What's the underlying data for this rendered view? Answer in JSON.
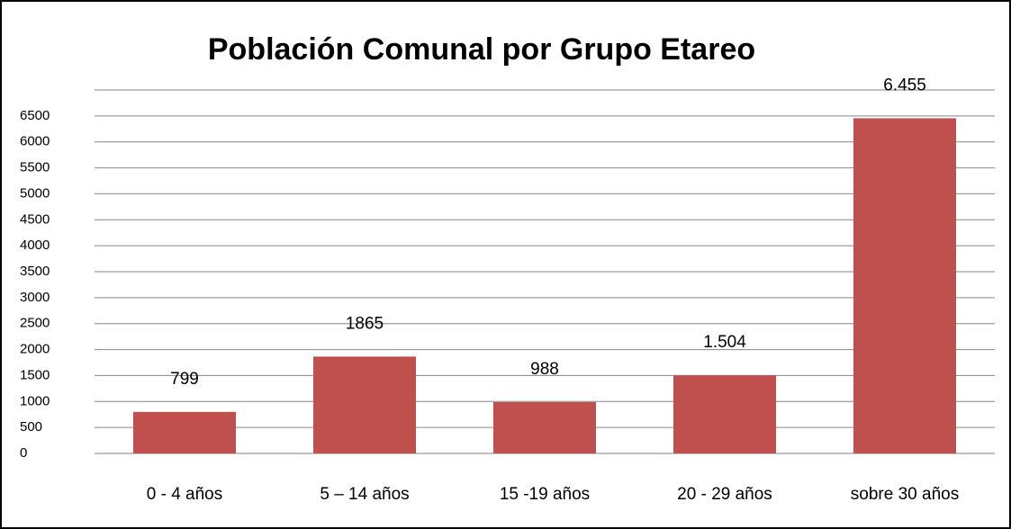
{
  "chart_data": {
    "type": "bar",
    "title": "Población Comunal por Grupo Etareo",
    "categories": [
      "0 -  4 años",
      "5 – 14 años",
      "15 -19 años",
      "20 - 29 años",
      "sobre 30 años"
    ],
    "values": [
      799,
      1865,
      988,
      1504,
      6455
    ],
    "value_labels": [
      "799",
      "1865",
      "988",
      "1.504",
      "6.455"
    ],
    "color": "#c0504d",
    "ylim": [
      0,
      7000
    ],
    "yticks": [
      0,
      500,
      1000,
      1500,
      2000,
      2500,
      3000,
      3500,
      4000,
      4500,
      5000,
      5500,
      6000,
      6500
    ],
    "grid": true
  }
}
